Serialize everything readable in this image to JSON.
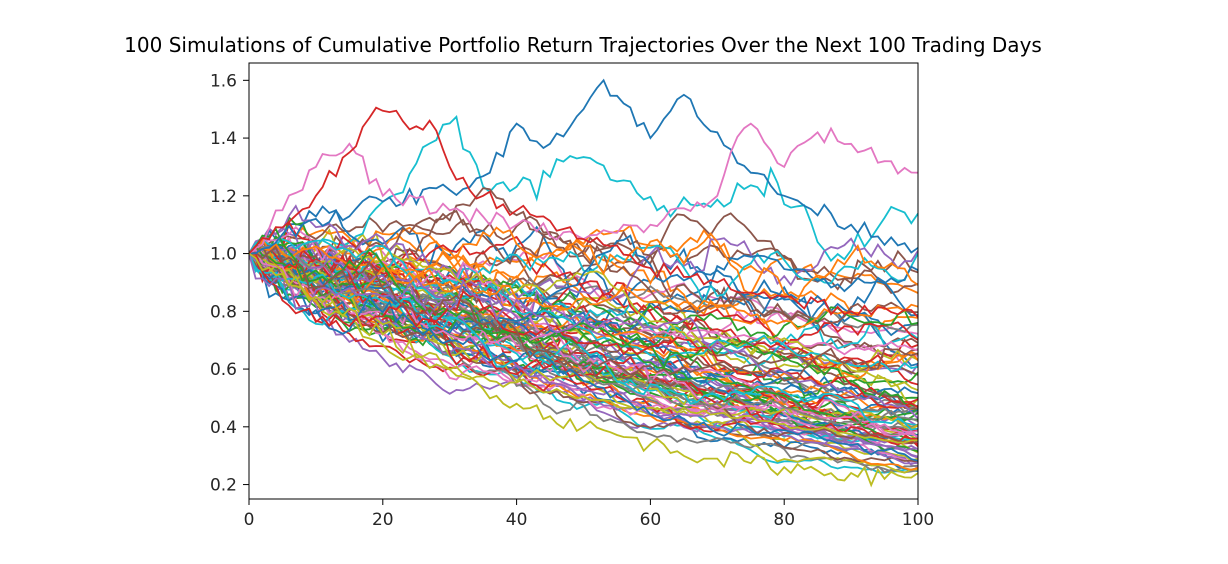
{
  "chart_data": {
    "type": "line",
    "title": "100 Simulations of Cumulative Portfolio Return Trajectories Over the Next 100 Trading Days",
    "xlabel": "",
    "ylabel": "",
    "xlim": [
      0,
      100
    ],
    "ylim": [
      0.15,
      1.66
    ],
    "x_ticks": [
      "0",
      "20",
      "40",
      "60",
      "80",
      "100"
    ],
    "y_ticks": [
      "0.2",
      "0.4",
      "0.6",
      "0.8",
      "1.0",
      "1.2",
      "1.4",
      "1.6"
    ],
    "grid": false,
    "legend": "none",
    "n_series": 100,
    "start_value": 1.0,
    "series_colors": [
      "#1f77b4",
      "#ff7f0e",
      "#2ca02c",
      "#d62728",
      "#9467bd",
      "#8c564b",
      "#e377c2",
      "#7f7f7f",
      "#bcbd22",
      "#17becf"
    ],
    "highlighted_series": [
      {
        "color": "#1f77b4",
        "x": [
          0,
          10,
          20,
          30,
          36,
          40,
          45,
          50,
          53,
          56,
          60,
          65,
          70,
          75,
          80,
          90,
          100
        ],
        "y": [
          1.0,
          1.12,
          1.18,
          1.22,
          1.28,
          1.45,
          1.38,
          1.5,
          1.6,
          1.52,
          1.4,
          1.55,
          1.42,
          1.28,
          1.2,
          1.1,
          1.02
        ]
      },
      {
        "color": "#e377c2",
        "x": [
          0,
          5,
          10,
          15,
          20,
          30,
          40,
          50,
          60,
          70,
          72,
          75,
          80,
          85,
          90,
          95,
          100
        ],
        "y": [
          1.0,
          1.15,
          1.3,
          1.38,
          1.2,
          1.15,
          1.1,
          1.05,
          1.1,
          1.2,
          1.35,
          1.45,
          1.3,
          1.42,
          1.38,
          1.32,
          1.28
        ]
      },
      {
        "color": "#d62728",
        "x": [
          0,
          10,
          15,
          18,
          21,
          24,
          27,
          30,
          35,
          40,
          50,
          60,
          70,
          80,
          90,
          100
        ],
        "y": [
          1.0,
          1.2,
          1.35,
          1.47,
          1.49,
          1.43,
          1.46,
          1.3,
          1.2,
          1.15,
          1.05,
          0.95,
          0.9,
          0.85,
          0.8,
          0.78
        ]
      },
      {
        "color": "#bcbd22",
        "x": [
          0,
          5,
          10,
          20,
          30,
          40,
          50,
          60,
          70,
          80,
          90,
          95,
          100
        ],
        "y": [
          1.0,
          0.93,
          0.85,
          0.72,
          0.6,
          0.48,
          0.4,
          0.34,
          0.29,
          0.26,
          0.24,
          0.22,
          0.24
        ]
      }
    ]
  }
}
